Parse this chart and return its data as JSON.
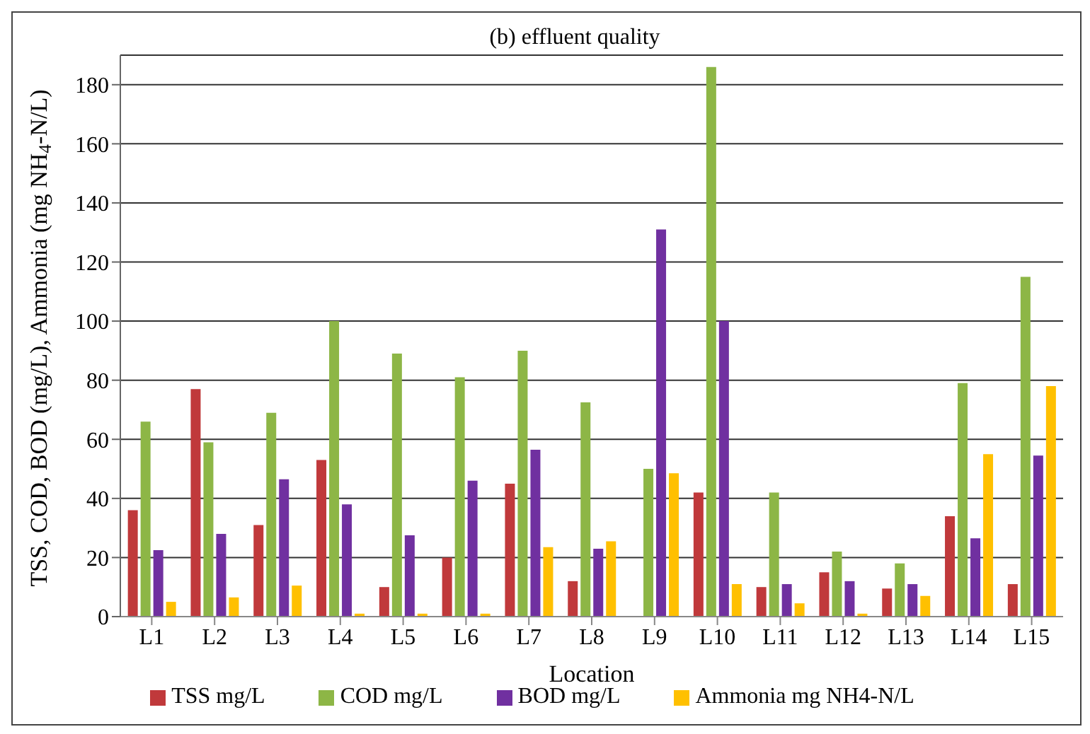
{
  "chart_data": {
    "type": "bar",
    "title": "(b) effluent quality",
    "xlabel": "Location",
    "ylabel": "TSS, COD, BOD (mg/L), Ammonia (mg NH$_{4}$-N/L)",
    "categories": [
      "L1",
      "L2",
      "L3",
      "L4",
      "L5",
      "L6",
      "L7",
      "L8",
      "L9",
      "L10",
      "L11",
      "L12",
      "L13",
      "L14",
      "L15"
    ],
    "series": [
      {
        "name": "TSS  mg/L",
        "color": "#c0393b",
        "values": [
          36,
          77,
          31,
          53,
          10,
          20,
          45,
          12,
          null,
          42,
          10,
          15,
          9.5,
          34,
          11
        ]
      },
      {
        "name": "COD  mg/L",
        "color": "#8db646",
        "values": [
          66,
          59,
          69,
          100,
          89,
          81,
          90,
          72.5,
          50,
          186,
          42,
          22,
          18,
          79,
          115
        ]
      },
      {
        "name": "BOD  mg/L",
        "color": "#7030a0",
        "values": [
          22.5,
          28,
          46.5,
          38,
          27.5,
          46,
          56.5,
          23,
          131,
          100,
          11,
          12,
          11,
          26.5,
          54.5
        ]
      },
      {
        "name": "Ammonia  mg NH4-N/L",
        "color": "#ffc000",
        "values": [
          5,
          6.5,
          10.5,
          1,
          1,
          1,
          23.5,
          25.5,
          48.5,
          11,
          4.5,
          1,
          7,
          55,
          78
        ]
      }
    ],
    "ylim": [
      0,
      190
    ],
    "yticks": [
      0,
      20,
      40,
      60,
      80,
      100,
      120,
      140,
      160,
      180
    ],
    "grid": "y",
    "legend": "bottom"
  }
}
